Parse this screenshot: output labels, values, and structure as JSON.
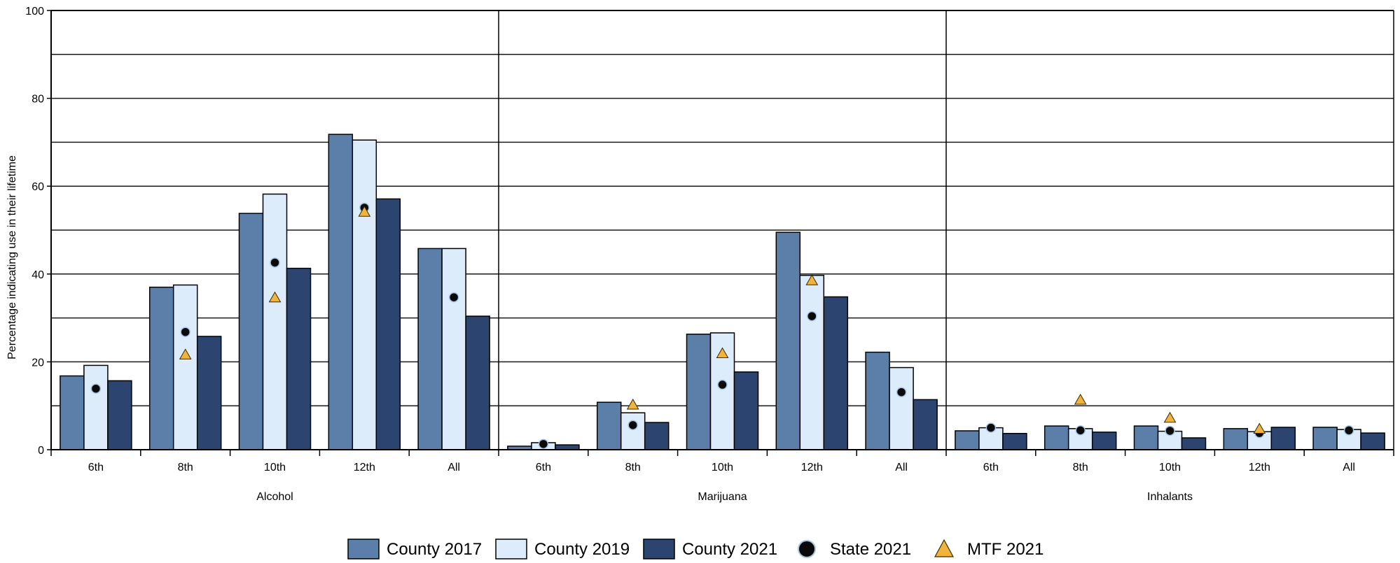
{
  "chart_data": {
    "type": "bar",
    "ylabel": "Percentage indicating use in their lifetime",
    "ylim": [
      0,
      100
    ],
    "yticks": [
      0,
      20,
      40,
      60,
      80,
      100
    ],
    "ytick_labels": [
      "0",
      "20",
      "40",
      "60",
      "80",
      "100"
    ],
    "grid": true,
    "legend_position": "bottom",
    "groups": [
      {
        "label": "Alcohol",
        "categories": [
          "6th",
          "8th",
          "10th",
          "12th",
          "All"
        ],
        "series": [
          {
            "name": "County 2017",
            "values": [
              16.8,
              37.0,
              53.8,
              71.8,
              45.8
            ]
          },
          {
            "name": "County 2019",
            "values": [
              19.2,
              37.5,
              58.2,
              70.5,
              45.8
            ]
          },
          {
            "name": "County 2021",
            "values": [
              15.7,
              25.8,
              41.3,
              57.1,
              30.4
            ]
          }
        ],
        "markers": [
          {
            "name": "State 2021",
            "values": [
              13.9,
              26.8,
              42.6,
              55.1,
              34.7
            ]
          },
          {
            "name": "MTF 2021",
            "values": [
              null,
              21.6,
              34.6,
              54.1,
              null
            ]
          }
        ]
      },
      {
        "label": "Marijuana",
        "categories": [
          "6th",
          "8th",
          "10th",
          "12th",
          "All"
        ],
        "series": [
          {
            "name": "County 2017",
            "values": [
              0.8,
              10.8,
              26.3,
              49.5,
              22.2
            ]
          },
          {
            "name": "County 2019",
            "values": [
              1.6,
              8.4,
              26.6,
              39.7,
              18.7
            ]
          },
          {
            "name": "County 2021",
            "values": [
              1.1,
              6.2,
              17.7,
              34.8,
              11.4
            ]
          }
        ],
        "markers": [
          {
            "name": "State 2021",
            "values": [
              1.3,
              5.6,
              14.8,
              30.4,
              13.1
            ]
          },
          {
            "name": "MTF 2021",
            "values": [
              null,
              10.2,
              21.9,
              38.5,
              null
            ]
          }
        ]
      },
      {
        "label": "Inhalants",
        "categories": [
          "6th",
          "8th",
          "10th",
          "12th",
          "All"
        ],
        "series": [
          {
            "name": "County 2017",
            "values": [
              4.3,
              5.4,
              5.4,
              4.8,
              5.1
            ]
          },
          {
            "name": "County 2019",
            "values": [
              5.0,
              4.8,
              4.2,
              4.1,
              4.6
            ]
          },
          {
            "name": "County 2021",
            "values": [
              3.7,
              4.0,
              2.7,
              5.1,
              3.8
            ]
          }
        ],
        "markers": [
          {
            "name": "State 2021",
            "values": [
              5.0,
              4.4,
              4.3,
              3.8,
              4.4
            ]
          },
          {
            "name": "MTF 2021",
            "values": [
              null,
              11.3,
              7.2,
              4.7,
              null
            ]
          }
        ]
      }
    ],
    "legend": [
      {
        "name": "County 2017",
        "kind": "bar",
        "color": "#5b7fa8"
      },
      {
        "name": "County 2019",
        "kind": "bar",
        "color": "#dcecfb"
      },
      {
        "name": "County 2021",
        "kind": "bar",
        "color": "#2b4570"
      },
      {
        "name": "State 2021",
        "kind": "circle",
        "color": "#0a0a0a"
      },
      {
        "name": "MTF 2021",
        "kind": "triangle",
        "color": "#f2b33a"
      }
    ],
    "colors": {
      "county_2017": "#5b7fa8",
      "county_2019": "#dcecfb",
      "county_2021": "#2b4570",
      "state_2021": "#0a0a0a",
      "mtf_2021": "#f2b33a"
    }
  }
}
